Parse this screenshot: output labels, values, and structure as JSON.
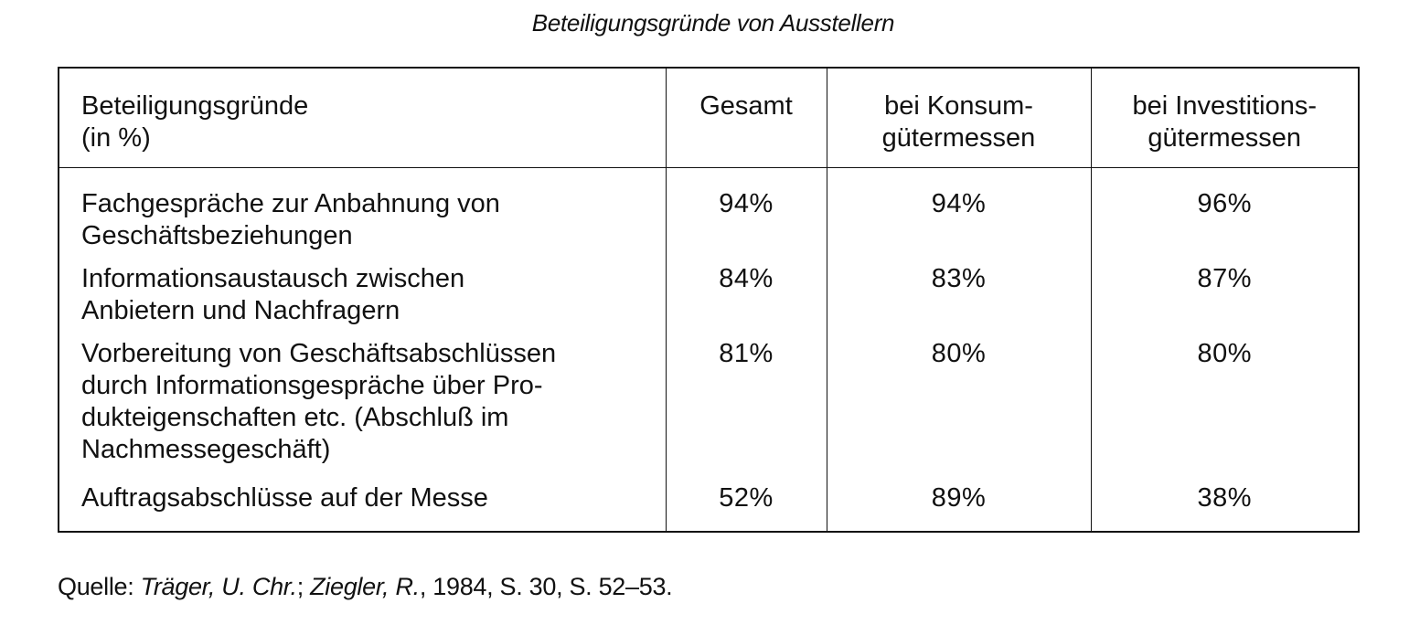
{
  "title": "Beteiligungsgründe von Ausstellern",
  "table": {
    "header": {
      "col1_line1": "Beteiligungsgründe",
      "col1_line2": "(in %)",
      "col2": "Gesamt",
      "col3_line1": "bei Konsum-",
      "col3_line2": "gütermessen",
      "col4_line1": "bei Investitions-",
      "col4_line2": "gütermessen"
    },
    "rows": [
      {
        "label_lines": [
          "Fachgespräche zur Anbahnung von",
          "Geschäftsbeziehungen"
        ],
        "gesamt": "94%",
        "konsum": "94%",
        "investition": "96%"
      },
      {
        "label_lines": [
          "Informationsaustausch zwischen",
          "Anbietern und Nachfragern"
        ],
        "gesamt": "84%",
        "konsum": "83%",
        "investition": "87%"
      },
      {
        "label_lines": [
          "Vorbereitung von Geschäftsabschlüssen",
          "durch Informationsgespräche über Pro-",
          "dukteigenschaften etc. (Abschluß im",
          "Nachmessegeschäft)"
        ],
        "gesamt": "81%",
        "konsum": "80%",
        "investition": "80%"
      },
      {
        "label_lines": [
          "Auftragsabschlüsse auf der Messe"
        ],
        "gesamt": "52%",
        "konsum": "89%",
        "investition": "38%"
      }
    ]
  },
  "source": {
    "prefix": "Quelle: ",
    "author1": "Träger, U. Chr.",
    "sep": "; ",
    "author2": "Ziegler, R.",
    "rest": ", 1984, S. 30, S. 52–53."
  }
}
